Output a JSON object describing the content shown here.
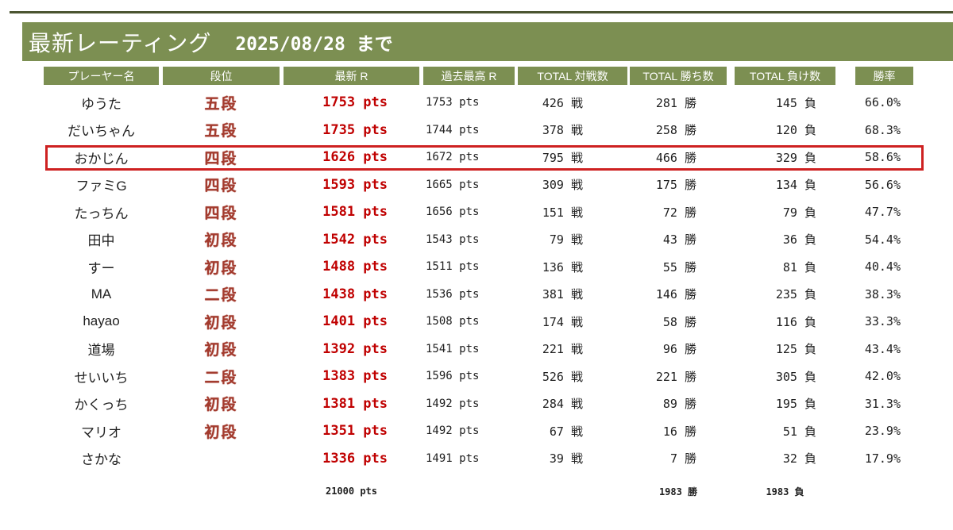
{
  "page": {
    "title": "最新レーティング",
    "as_of": "2025/08/28 まで"
  },
  "table": {
    "columns": [
      {
        "id": "name",
        "label": "プレーヤー名"
      },
      {
        "id": "rank",
        "label": "段位"
      },
      {
        "id": "latest_r",
        "label": "最新 R"
      },
      {
        "id": "best_r",
        "label": "過去最高 R"
      },
      {
        "id": "total_games",
        "label": "TOTAL 対戦数"
      },
      {
        "id": "total_wins",
        "label": "TOTAL 勝ち数"
      },
      {
        "id": "total_losses",
        "label": "TOTAL 負け数"
      },
      {
        "id": "win_rate",
        "label": "勝率"
      }
    ],
    "units": {
      "rating": "pts",
      "games": "戦",
      "wins": "勝",
      "losses": "負"
    },
    "rows": [
      {
        "name": "ゆうた",
        "rank": "五段",
        "latest_r": "1753",
        "best_r": "1753",
        "games": "426",
        "wins": "281",
        "losses": "145",
        "win_rate": "66.0%",
        "highlighted": false
      },
      {
        "name": "だいちゃん",
        "rank": "五段",
        "latest_r": "1735",
        "best_r": "1744",
        "games": "378",
        "wins": "258",
        "losses": "120",
        "win_rate": "68.3%",
        "highlighted": false
      },
      {
        "name": "おかじん",
        "rank": "四段",
        "latest_r": "1626",
        "best_r": "1672",
        "games": "795",
        "wins": "466",
        "losses": "329",
        "win_rate": "58.6%",
        "highlighted": true
      },
      {
        "name": "ファミG",
        "rank": "四段",
        "latest_r": "1593",
        "best_r": "1665",
        "games": "309",
        "wins": "175",
        "losses": "134",
        "win_rate": "56.6%",
        "highlighted": false
      },
      {
        "name": "たっちん",
        "rank": "四段",
        "latest_r": "1581",
        "best_r": "1656",
        "games": "151",
        "wins": "72",
        "losses": "79",
        "win_rate": "47.7%",
        "highlighted": false
      },
      {
        "name": "田中",
        "rank": "初段",
        "latest_r": "1542",
        "best_r": "1543",
        "games": "79",
        "wins": "43",
        "losses": "36",
        "win_rate": "54.4%",
        "highlighted": false
      },
      {
        "name": "すー",
        "rank": "初段",
        "latest_r": "1488",
        "best_r": "1511",
        "games": "136",
        "wins": "55",
        "losses": "81",
        "win_rate": "40.4%",
        "highlighted": false
      },
      {
        "name": "MA",
        "rank": "二段",
        "latest_r": "1438",
        "best_r": "1536",
        "games": "381",
        "wins": "146",
        "losses": "235",
        "win_rate": "38.3%",
        "highlighted": false
      },
      {
        "name": "hayao",
        "rank": "初段",
        "latest_r": "1401",
        "best_r": "1508",
        "games": "174",
        "wins": "58",
        "losses": "116",
        "win_rate": "33.3%",
        "highlighted": false
      },
      {
        "name": "道場",
        "rank": "初段",
        "latest_r": "1392",
        "best_r": "1541",
        "games": "221",
        "wins": "96",
        "losses": "125",
        "win_rate": "43.4%",
        "highlighted": false
      },
      {
        "name": "せいいち",
        "rank": "二段",
        "latest_r": "1383",
        "best_r": "1596",
        "games": "526",
        "wins": "221",
        "losses": "305",
        "win_rate": "42.0%",
        "highlighted": false
      },
      {
        "name": "かくっち",
        "rank": "初段",
        "latest_r": "1381",
        "best_r": "1492",
        "games": "284",
        "wins": "89",
        "losses": "195",
        "win_rate": "31.3%",
        "highlighted": false
      },
      {
        "name": "マリオ",
        "rank": "初段",
        "latest_r": "1351",
        "best_r": "1492",
        "games": "67",
        "wins": "16",
        "losses": "51",
        "win_rate": "23.9%",
        "highlighted": false
      },
      {
        "name": "さかな",
        "rank": "",
        "latest_r": "1336",
        "best_r": "1491",
        "games": "39",
        "wins": "7",
        "losses": "32",
        "win_rate": "17.9%",
        "highlighted": false
      }
    ],
    "totals": {
      "latest_r": "21000 pts",
      "wins": "1983 勝",
      "losses": "1983 負"
    }
  },
  "colors": {
    "olive": "#7C8F52",
    "dark_line": "#4B5531",
    "rank_red": "#A33B2E",
    "rating_red": "#C00000",
    "highlight_border": "#CE2121",
    "text": "#1F1F1F"
  }
}
